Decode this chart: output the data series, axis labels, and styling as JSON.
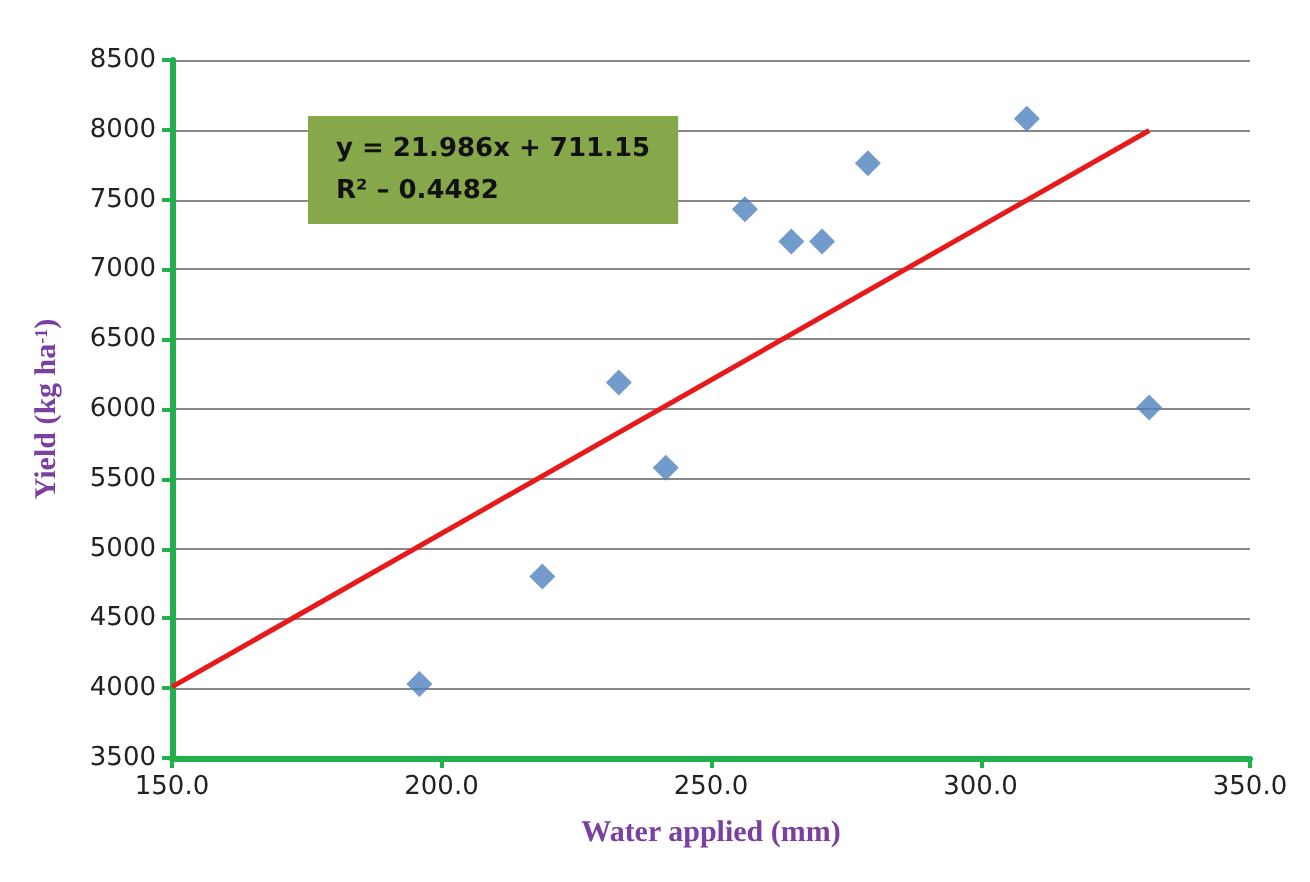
{
  "chart_data": {
    "type": "scatter",
    "xlabel": "Water applied (mm)",
    "ylabel": "Yield (kg ha$^{-1}$)",
    "annotations": [
      "y = 21.986x + 711.15",
      "R² – 0.4482"
    ],
    "xlim": [
      150,
      350
    ],
    "xticks": [
      {
        "value": 150,
        "label": "150.0"
      },
      {
        "value": 200,
        "label": "200.0"
      },
      {
        "value": 250,
        "label": "250.0"
      },
      {
        "value": 300,
        "label": "300.0"
      },
      {
        "value": 350,
        "label": "350.0"
      }
    ],
    "ylim": [
      3500,
      8500
    ],
    "yticks": [
      3500,
      4000,
      4500,
      5000,
      5500,
      6000,
      6500,
      7000,
      7500,
      8000,
      8500
    ],
    "grid": "y",
    "marker": "diamond",
    "series": [
      {
        "color": "#4f81bd",
        "x": [
          195.9,
          218.7,
          232.9,
          241.6,
          256.3,
          264.9,
          270.6,
          279.1,
          308.6,
          331.3
        ],
        "values": [
          4030,
          4800,
          6190,
          5580,
          7430,
          7200,
          7200,
          7760,
          8080,
          6010
        ]
      },
      {
        "type": "line",
        "color": "#e8191a",
        "marker": "none",
        "line_style": "solid",
        "x": [
          150,
          331.3
        ],
        "values": [
          4009,
          7995
        ]
      }
    ]
  }
}
